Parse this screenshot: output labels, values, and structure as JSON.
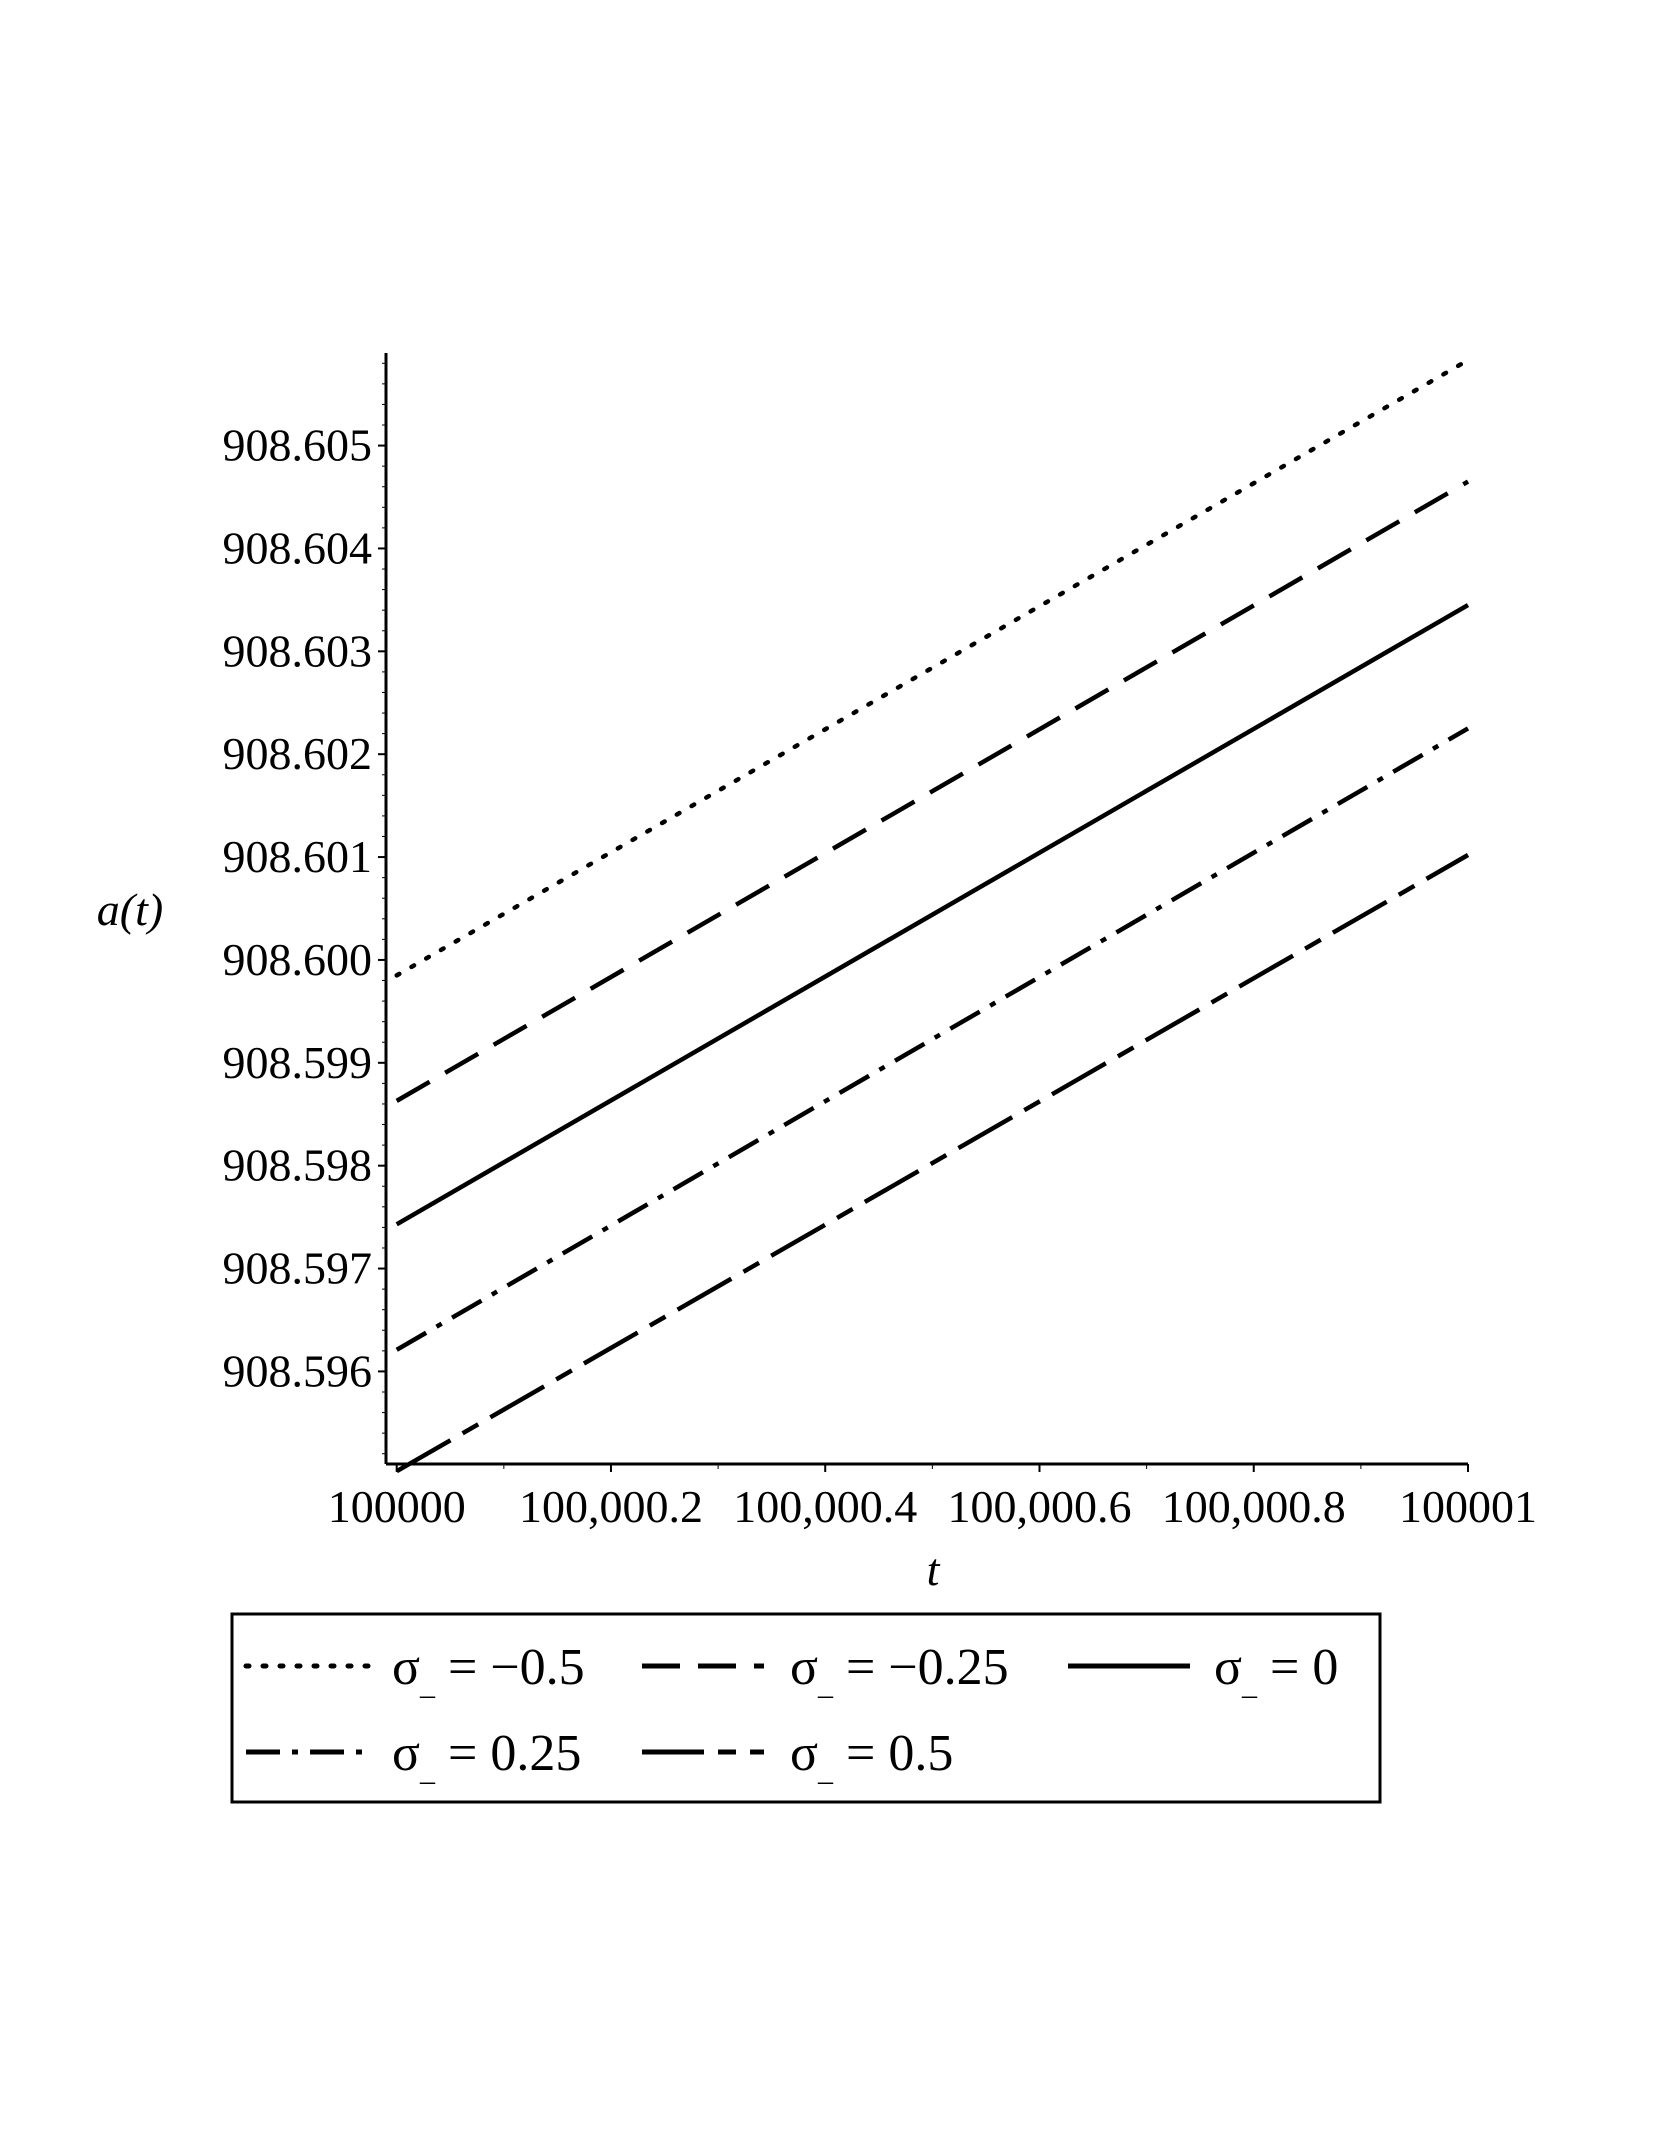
{
  "chart_data": {
    "type": "line",
    "xlabel": "t",
    "ylabel": "a(t)",
    "xlim": [
      99999.99,
      100001.0
    ],
    "ylim": [
      908.5951,
      908.6059
    ],
    "x_ticks": [
      100000,
      100000.2,
      100000.4,
      100000.6,
      100000.8,
      100001
    ],
    "x_tick_labels": [
      "100000",
      "100,000.2",
      "100,000.4",
      "100,000.6",
      "100,000.8",
      "100001"
    ],
    "y_ticks": [
      908.596,
      908.597,
      908.598,
      908.599,
      908.6,
      908.601,
      908.602,
      908.603,
      908.604,
      908.605
    ],
    "y_tick_labels": [
      "908.596",
      "908.597",
      "908.598",
      "908.599",
      "908.600",
      "908.601",
      "908.602",
      "908.603",
      "908.604",
      "908.605"
    ],
    "grid": false,
    "legend_position": "bottom",
    "series": [
      {
        "name": "σ_ = −0.5",
        "legend_value": "−0.5",
        "style": "dotted",
        "x": [
          100000,
          100001
        ],
        "y": [
          908.59985,
          908.60583
        ]
      },
      {
        "name": "σ_ = −0.25",
        "legend_value": "−0.25",
        "style": "dashed",
        "x": [
          100000,
          100001
        ],
        "y": [
          908.59863,
          908.60465
        ]
      },
      {
        "name": "σ_ = 0",
        "legend_value": "0",
        "style": "solid",
        "x": [
          100000,
          100001
        ],
        "y": [
          908.59743,
          908.60345
        ]
      },
      {
        "name": "σ_ = 0.25",
        "legend_value": "0.25",
        "style": "dashdot",
        "x": [
          100000,
          100001
        ],
        "y": [
          908.59621,
          908.60225
        ]
      },
      {
        "name": "σ_ = 0.5",
        "legend_value": "0.5",
        "style": "longdash",
        "x": [
          100000,
          100001
        ],
        "y": [
          908.59503,
          908.60102
        ]
      }
    ],
    "legend": {
      "symbol": "σ",
      "subscript": "_",
      "equals": "="
    }
  }
}
